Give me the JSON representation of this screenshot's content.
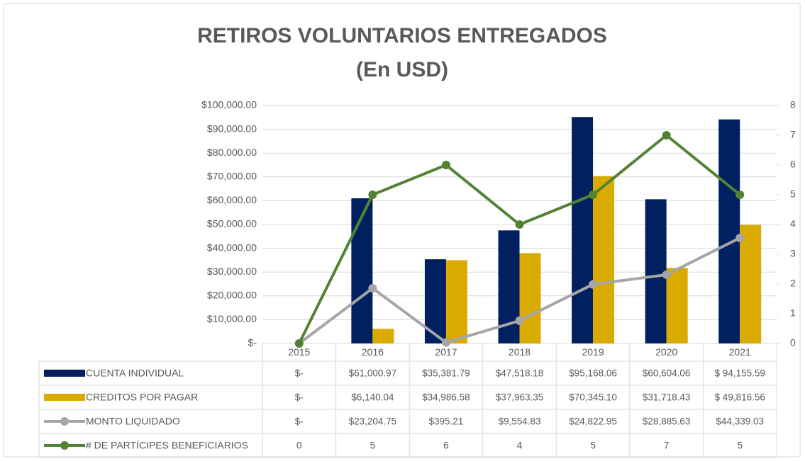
{
  "chart_data": {
    "type": "bar",
    "title": "RETIROS VOLUNTARIOS ENTREGADOS",
    "subtitle": "(En USD)",
    "categories": [
      "2015",
      "2016",
      "2017",
      "2018",
      "2019",
      "2020",
      "2021"
    ],
    "series": [
      {
        "name": "CUENTA INDIVIDUAL",
        "type": "bar",
        "color": "#002060",
        "values": [
          0,
          61000.97,
          35381.79,
          47518.18,
          95168.06,
          60604.06,
          94155.59
        ],
        "value_labels": [
          "$-",
          "$61,000.97",
          "$35,381.79",
          "$47,518.18",
          "$95,168.06",
          "$60,604.06",
          "$ 94,155.59"
        ]
      },
      {
        "name": "CREDITOS POR PAGAR",
        "type": "bar",
        "color": "#d9ab00",
        "values": [
          0,
          6140.04,
          34986.58,
          37963.35,
          70345.1,
          31718.43,
          49816.56
        ],
        "value_labels": [
          "$-",
          "$6,140.04",
          "$34,986.58",
          "$37,963.35",
          "$70,345.10",
          "$31,718.43",
          "$ 49,816.56"
        ]
      },
      {
        "name": "MONTO LIQUIDADO",
        "type": "line",
        "color": "#a6a6a6",
        "values": [
          0,
          23204.75,
          395.21,
          9554.83,
          24822.95,
          28885.63,
          44339.03
        ],
        "value_labels": [
          "$-",
          "$23,204.75",
          "$395.21",
          "$9,554.83",
          "$24,822.95",
          "$28,885.63",
          "$44,339.03"
        ]
      },
      {
        "name": "# DE PARTÍCIPES BENEFICIARIOS",
        "type": "line",
        "axis": "y2",
        "color": "#548235",
        "values": [
          0,
          5,
          6,
          4,
          5,
          7,
          5
        ]
      }
    ],
    "ylim": [
      0,
      100000
    ],
    "yticks": [
      {
        "value": 0,
        "label": "$-"
      },
      {
        "value": 10000,
        "label": "$10,000.00"
      },
      {
        "value": 20000,
        "label": "$20,000.00"
      },
      {
        "value": 30000,
        "label": "$30,000.00"
      },
      {
        "value": 40000,
        "label": "$40,000.00"
      },
      {
        "value": 50000,
        "label": "$50,000.00"
      },
      {
        "value": 60000,
        "label": "$60,000.00"
      },
      {
        "value": 70000,
        "label": "$70,000.00"
      },
      {
        "value": 80000,
        "label": "$80,000.00"
      },
      {
        "value": 90000,
        "label": "$90,000.00"
      },
      {
        "value": 100000,
        "label": "$100,000.00"
      }
    ],
    "y2lim": [
      0,
      8
    ],
    "y2ticks": [
      0,
      1,
      2,
      3,
      4,
      5,
      6,
      7,
      8
    ],
    "grid": true,
    "data_table": true
  }
}
